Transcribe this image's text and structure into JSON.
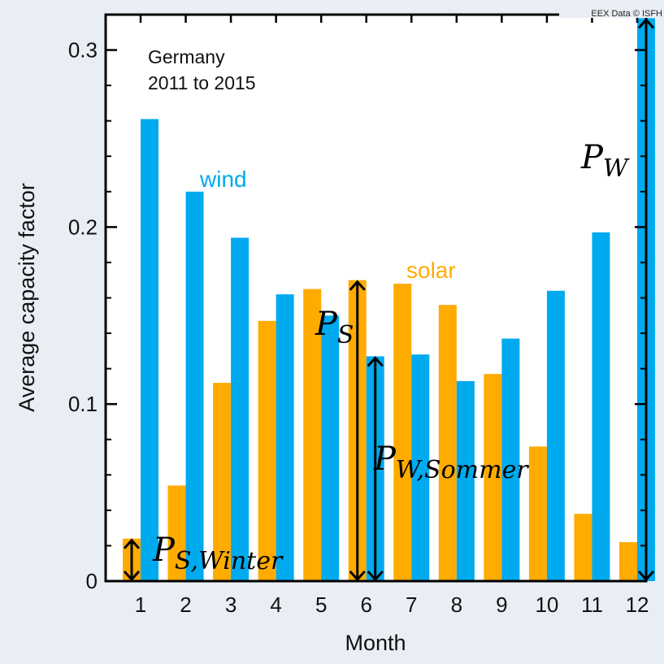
{
  "chart_data": {
    "type": "bar",
    "title": "",
    "xlabel": "Month",
    "ylabel": "Average capacity factor",
    "categories": [
      "1",
      "2",
      "3",
      "4",
      "5",
      "6",
      "7",
      "8",
      "9",
      "10",
      "11",
      "12"
    ],
    "series": [
      {
        "name": "solar",
        "color": "#ffab00",
        "values": [
          0.024,
          0.054,
          0.112,
          0.147,
          0.165,
          0.17,
          0.168,
          0.156,
          0.117,
          0.076,
          0.038,
          0.022
        ]
      },
      {
        "name": "wind",
        "color": "#00aaee",
        "values": [
          0.261,
          0.22,
          0.194,
          0.162,
          0.15,
          0.127,
          0.128,
          0.113,
          0.137,
          0.164,
          0.197,
          0.318
        ]
      }
    ],
    "ylim": [
      0,
      0.32
    ],
    "yticks": [
      "0",
      "0.1",
      "0.2",
      "0.3"
    ],
    "grid": false,
    "annotations": {
      "region": "Germany",
      "period": "2011 to 2015",
      "source": "EEX Data © ISFH",
      "labels": {
        "p_s_winter_main": "P",
        "p_s_winter_sub": "S,Winter",
        "p_s_main": "P",
        "p_s_sub": "S",
        "p_w_sommer_main": "P",
        "p_w_sommer_sub": "W,Sommer",
        "p_w_main": "P",
        "p_w_sub": "W"
      }
    }
  }
}
